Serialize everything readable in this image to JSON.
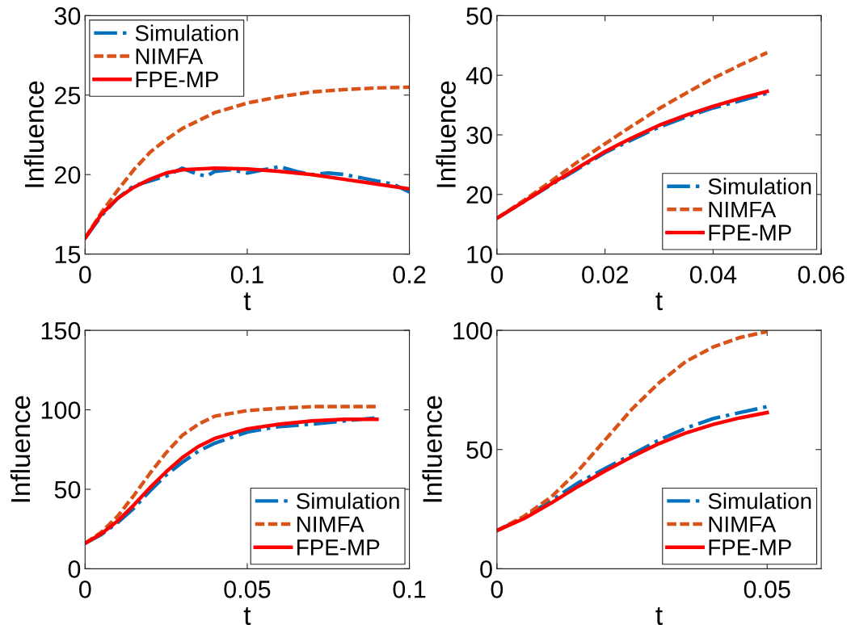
{
  "chart_data": [
    {
      "type": "line",
      "xlabel": "t",
      "ylabel": "Influence",
      "xlim": [
        0,
        0.2
      ],
      "ylim": [
        15,
        30
      ],
      "xticks": [
        0,
        0.1,
        0.2
      ],
      "yticks": [
        15,
        20,
        25,
        30
      ],
      "grid": false,
      "legend": "top left",
      "series": [
        {
          "name": "Simulation",
          "color": "#0072bd",
          "line_style": "dashdot",
          "x": [
            0,
            0.01,
            0.02,
            0.03,
            0.04,
            0.05,
            0.06,
            0.07,
            0.075,
            0.08,
            0.09,
            0.1,
            0.11,
            0.12,
            0.13,
            0.14,
            0.15,
            0.16,
            0.17,
            0.18,
            0.19,
            0.2
          ],
          "values": [
            16,
            17.4,
            18.5,
            19.3,
            19.6,
            19.9,
            20.4,
            20.0,
            19.9,
            20.2,
            20.3,
            20.1,
            20.3,
            20.5,
            20.2,
            20.0,
            20.1,
            20.0,
            19.8,
            19.6,
            19.4,
            18.9
          ]
        },
        {
          "name": "NIMFA",
          "color": "#d95319",
          "line_style": "dashed",
          "x": [
            0,
            0.01,
            0.02,
            0.03,
            0.04,
            0.05,
            0.06,
            0.07,
            0.08,
            0.1,
            0.12,
            0.14,
            0.16,
            0.18,
            0.2
          ],
          "values": [
            16,
            17.6,
            19.0,
            20.3,
            21.4,
            22.2,
            22.9,
            23.4,
            23.9,
            24.5,
            24.9,
            25.2,
            25.35,
            25.45,
            25.5
          ]
        },
        {
          "name": "FPE-MP",
          "color": "#ff0000",
          "line_style": "solid",
          "x": [
            0,
            0.01,
            0.02,
            0.03,
            0.04,
            0.05,
            0.06,
            0.08,
            0.1,
            0.12,
            0.14,
            0.16,
            0.18,
            0.2
          ],
          "values": [
            16,
            17.5,
            18.5,
            19.2,
            19.7,
            20.1,
            20.3,
            20.4,
            20.35,
            20.2,
            20.0,
            19.7,
            19.4,
            19.1
          ]
        }
      ]
    },
    {
      "type": "line",
      "xlabel": "t",
      "ylabel": "Influence",
      "xlim": [
        0,
        0.06
      ],
      "ylim": [
        10,
        50
      ],
      "xticks": [
        0,
        0.02,
        0.04,
        0.06
      ],
      "yticks": [
        10,
        20,
        30,
        40,
        50
      ],
      "grid": false,
      "legend": "bottom right",
      "series": [
        {
          "name": "Simulation",
          "color": "#0072bd",
          "line_style": "dashdot",
          "x": [
            0,
            0.01,
            0.015,
            0.02,
            0.025,
            0.03,
            0.035,
            0.04,
            0.045,
            0.05
          ],
          "values": [
            16,
            21.6,
            24.3,
            27.0,
            29.2,
            31.3,
            33.0,
            34.5,
            35.7,
            37.0
          ]
        },
        {
          "name": "NIMFA",
          "color": "#d95319",
          "line_style": "dashed",
          "x": [
            0,
            0.005,
            0.01,
            0.015,
            0.02,
            0.025,
            0.03,
            0.035,
            0.04,
            0.045,
            0.05
          ],
          "values": [
            16,
            19,
            22.2,
            25.5,
            28.5,
            31.5,
            34.4,
            37.0,
            39.5,
            41.7,
            43.8
          ]
        },
        {
          "name": "FPE-MP",
          "color": "#ff0000",
          "line_style": "solid",
          "x": [
            0,
            0.005,
            0.01,
            0.015,
            0.02,
            0.025,
            0.03,
            0.035,
            0.04,
            0.045,
            0.05
          ],
          "values": [
            16,
            18.8,
            21.7,
            24.5,
            27.2,
            29.5,
            31.6,
            33.3,
            34.8,
            36.1,
            37.3
          ]
        }
      ]
    },
    {
      "type": "line",
      "xlabel": "t",
      "ylabel": "Influence",
      "xlim": [
        0,
        0.1
      ],
      "ylim": [
        0,
        150
      ],
      "xticks": [
        0,
        0.05,
        0.1
      ],
      "yticks": [
        0,
        50,
        100,
        150
      ],
      "grid": false,
      "legend": "bottom right",
      "series": [
        {
          "name": "Simulation",
          "color": "#0072bd",
          "line_style": "dashdot",
          "x": [
            0,
            0.005,
            0.01,
            0.015,
            0.02,
            0.025,
            0.03,
            0.035,
            0.04,
            0.05,
            0.06,
            0.07,
            0.08,
            0.09
          ],
          "values": [
            16,
            21.5,
            29,
            38,
            49,
            59,
            67,
            74,
            79,
            86,
            89.5,
            91,
            93,
            95
          ]
        },
        {
          "name": "NIMFA",
          "color": "#d95319",
          "line_style": "dashed",
          "x": [
            0,
            0.005,
            0.01,
            0.015,
            0.02,
            0.025,
            0.03,
            0.035,
            0.04,
            0.05,
            0.06,
            0.07,
            0.08,
            0.09
          ],
          "values": [
            16,
            23,
            33,
            46,
            60,
            73,
            84,
            91,
            96,
            99.5,
            101,
            102,
            102,
            102
          ]
        },
        {
          "name": "FPE-MP",
          "color": "#ff0000",
          "line_style": "solid",
          "x": [
            0,
            0.005,
            0.01,
            0.015,
            0.02,
            0.025,
            0.03,
            0.035,
            0.04,
            0.05,
            0.06,
            0.07,
            0.08,
            0.09
          ],
          "values": [
            16,
            22,
            30,
            40,
            51,
            61,
            70,
            77,
            82,
            88,
            91,
            93,
            94,
            94
          ]
        }
      ]
    },
    {
      "type": "line",
      "xlabel": "t",
      "ylabel": "Influence",
      "xlim": [
        0,
        0.06
      ],
      "ylim": [
        0,
        100
      ],
      "xticks": [
        0,
        0.05
      ],
      "yticks": [
        0,
        50,
        100
      ],
      "grid": false,
      "legend": "bottom right",
      "series": [
        {
          "name": "Simulation",
          "color": "#0072bd",
          "line_style": "dashdot",
          "x": [
            0,
            0.005,
            0.01,
            0.015,
            0.02,
            0.025,
            0.03,
            0.035,
            0.04,
            0.045,
            0.05
          ],
          "values": [
            16,
            21.5,
            28.5,
            36,
            42,
            48,
            54,
            59,
            63,
            65.5,
            68
          ]
        },
        {
          "name": "NIMFA",
          "color": "#d95319",
          "line_style": "dashed",
          "x": [
            0,
            0.005,
            0.01,
            0.015,
            0.02,
            0.025,
            0.03,
            0.035,
            0.04,
            0.045,
            0.05
          ],
          "values": [
            16,
            22,
            30,
            41,
            54,
            67,
            78,
            87,
            93,
            97,
            99.5
          ]
        },
        {
          "name": "FPE-MP",
          "color": "#ff0000",
          "line_style": "solid",
          "x": [
            0,
            0.005,
            0.01,
            0.015,
            0.02,
            0.025,
            0.03,
            0.035,
            0.04,
            0.045,
            0.05
          ],
          "values": [
            16,
            21,
            27.5,
            34.5,
            41,
            47,
            52.5,
            57,
            60.5,
            63.3,
            65.5
          ]
        }
      ]
    }
  ]
}
